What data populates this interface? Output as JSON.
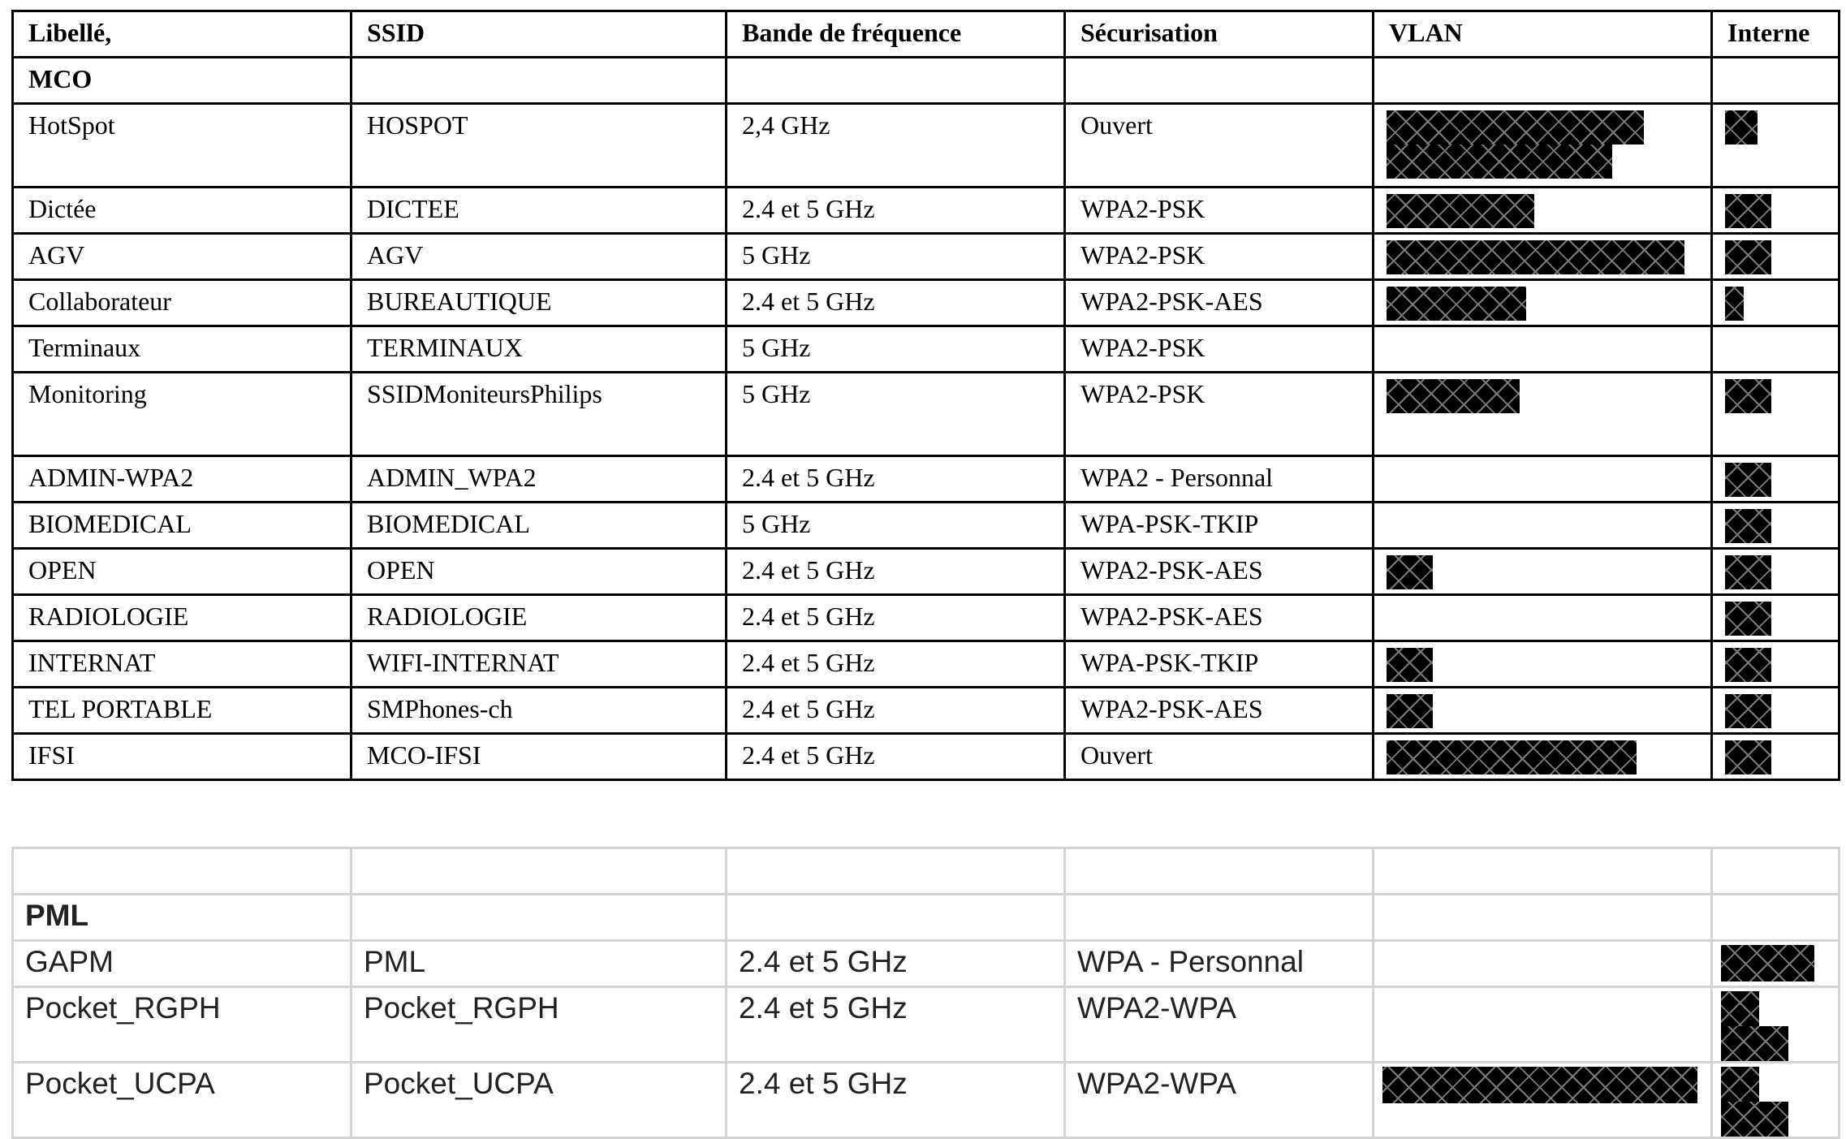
{
  "columns": [
    "Libellé,",
    "SSID",
    "Bande de fréquence",
    "Sécurisation",
    "VLAN",
    "Interne"
  ],
  "mco": {
    "section_label": "MCO",
    "rows": [
      {
        "libelle": "HotSpot",
        "ssid": "HOSPOT",
        "band": "2,4 GHz",
        "security": "Ouvert"
      },
      {
        "libelle": "Dictée",
        "ssid": "DICTEE",
        "band": "2.4 et 5 GHz",
        "security": "WPA2-PSK"
      },
      {
        "libelle": "AGV",
        "ssid": "AGV",
        "band": "5 GHz",
        "security": "WPA2-PSK"
      },
      {
        "libelle": "Collaborateur",
        "ssid": "BUREAUTIQUE",
        "band": "2.4 et 5 GHz",
        "security": "WPA2-PSK-AES"
      },
      {
        "libelle": "Terminaux",
        "ssid": "TERMINAUX",
        "band": "5 GHz",
        "security": "WPA2-PSK"
      },
      {
        "libelle": "Monitoring",
        "ssid": "SSIDMoniteursPhilips",
        "band": "5 GHz",
        "security": "WPA2-PSK"
      },
      {
        "libelle": "ADMIN-WPA2",
        "ssid": "ADMIN_WPA2",
        "band": "2.4 et 5 GHz",
        "security": "WPA2 - Personnal"
      },
      {
        "libelle": "BIOMEDICAL",
        "ssid": "BIOMEDICAL",
        "band": "5 GHz",
        "security": "WPA-PSK-TKIP"
      },
      {
        "libelle": "OPEN",
        "ssid": "OPEN",
        "band": "2.4 et 5 GHz",
        "security": "WPA2-PSK-AES"
      },
      {
        "libelle": "RADIOLOGIE",
        "ssid": "RADIOLOGIE",
        "band": "2.4 et 5 GHz",
        "security": "WPA2-PSK-AES"
      },
      {
        "libelle": "INTERNAT",
        "ssid": "WIFI-INTERNAT",
        "band": "2.4 et 5 GHz",
        "security": "WPA-PSK-TKIP"
      },
      {
        "libelle": "TEL PORTABLE",
        "ssid": "SMPhones-ch",
        "band": "2.4 et 5 GHz",
        "security": "WPA2-PSK-AES"
      },
      {
        "libelle": "IFSI",
        "ssid": "MCO-IFSI",
        "band": "2.4 et 5 GHz",
        "security": "Ouvert"
      }
    ]
  },
  "pml": {
    "section_label": "PML",
    "rows": [
      {
        "libelle": "GAPM",
        "ssid": "PML",
        "band": "2.4 et 5 GHz",
        "security": "WPA - Personnal"
      },
      {
        "libelle": "Pocket_RGPH",
        "ssid": "Pocket_RGPH",
        "band": "2.4 et 5 GHz",
        "security": "WPA2-WPA"
      },
      {
        "libelle": "Pocket_UCPA",
        "ssid": "Pocket_UCPA",
        "band": "2.4 et 5 GHz",
        "security": "WPA2-WPA"
      }
    ]
  },
  "colors": {
    "grid_mco": "#000000",
    "grid_pml": "#d4d4d4",
    "redaction": "#000000"
  }
}
